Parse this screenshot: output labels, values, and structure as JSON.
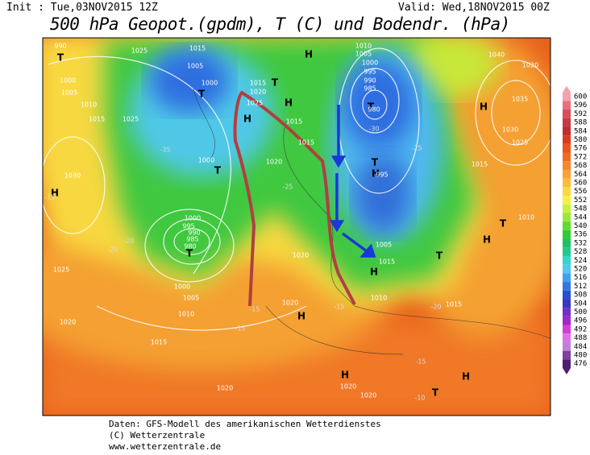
{
  "header": {
    "init": "Init : Tue,03NOV2015 12Z",
    "valid": "Valid: Wed,18NOV2015 00Z",
    "title": "500 hPa Geopot.(gpdm), T (C) und Bodendr. (hPa)"
  },
  "footer": [
    "Daten: GFS-Modell des amerikanischen Wetterdienstes",
    "(C) Wetterzentrale",
    "www.wetterzentrale.de"
  ],
  "colorbar": {
    "labels": [
      600,
      596,
      592,
      588,
      584,
      580,
      576,
      572,
      568,
      564,
      560,
      556,
      552,
      548,
      544,
      540,
      536,
      532,
      528,
      524,
      520,
      516,
      512,
      508,
      504,
      500,
      496,
      492,
      488,
      484,
      480,
      476
    ],
    "colors": [
      "#f4a0b0",
      "#e8707c",
      "#d84c5c",
      "#c83844",
      "#c02c30",
      "#d83c1c",
      "#e8541c",
      "#f06c20",
      "#f8842c",
      "#fca034",
      "#fcbc3c",
      "#fcd840",
      "#f4f044",
      "#c8f03c",
      "#98e838",
      "#60dc30",
      "#30cc38",
      "#20c060",
      "#20c890",
      "#30d8c8",
      "#50c8f0",
      "#40a0f0",
      "#3078e0",
      "#2850d0",
      "#3838c0",
      "#7030c8",
      "#a028c8",
      "#d040d8",
      "#e070e8",
      "#c080d8",
      "#8040a0",
      "#502070"
    ]
  },
  "map_labels": [
    "H",
    "H",
    "H",
    "H",
    "H",
    "H",
    "H",
    "H",
    "H",
    "H",
    "H",
    "T",
    "T",
    "T",
    "T",
    "T",
    "T",
    "T",
    "T",
    "T",
    "T",
    "990",
    "1025",
    "1015",
    "1005",
    "1000",
    "1015",
    "1020",
    "1025",
    "1000",
    "1005",
    "1010",
    "1015",
    "1025",
    "1030",
    "1000",
    "1020",
    "1015",
    "1015",
    "1010",
    "1005",
    "1000",
    "995",
    "990",
    "985",
    "980",
    "995",
    "1005",
    "1015",
    "1010",
    "1020",
    "1020",
    "1000",
    "995",
    "990",
    "985",
    "980",
    "1000",
    "1005",
    "1010",
    "1015",
    "1020",
    "1025",
    "1020",
    "1020",
    "1020",
    "1015",
    "1015",
    "1030",
    "1035",
    "1025",
    "1040",
    "1020",
    "1010",
    "-35",
    "-30",
    "-25",
    "-15",
    "-20",
    "-15",
    "-15",
    "-15",
    "-15",
    "-10",
    "-20",
    "-25",
    "-20"
  ]
}
